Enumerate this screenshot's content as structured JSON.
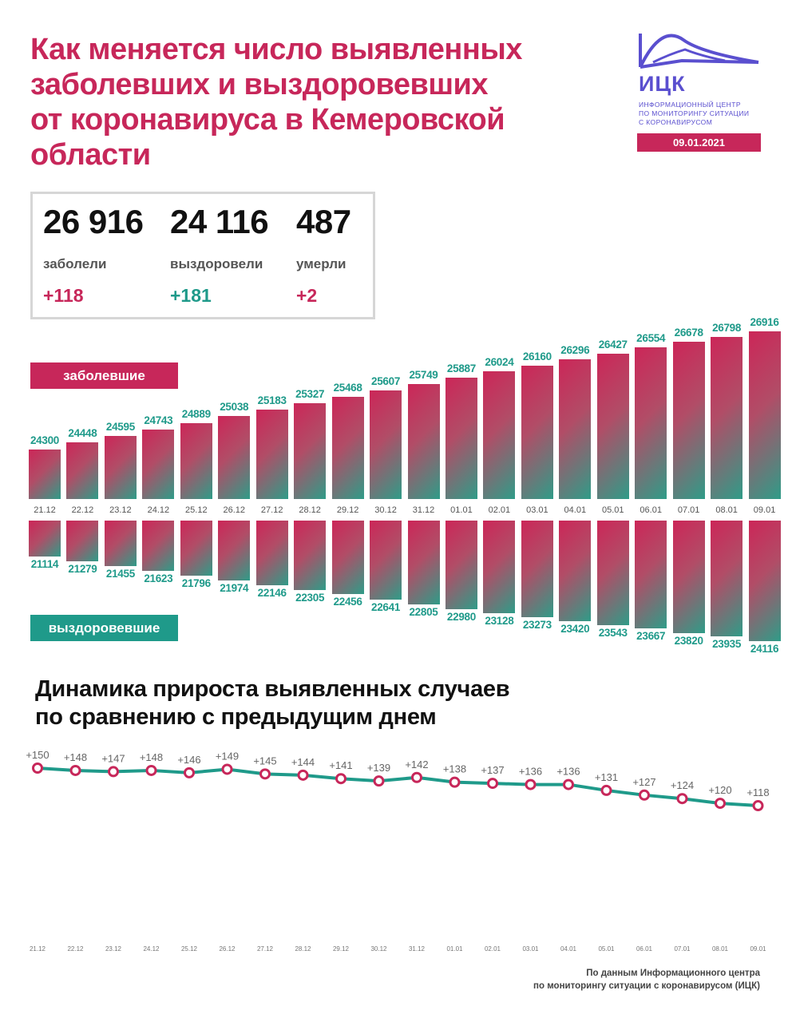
{
  "title": {
    "lines": [
      "Как меняется число выявленных",
      "заболевших и выздоровевших",
      "от коронавируса в Кемеровской",
      "области"
    ]
  },
  "logo": {
    "abbr": "ИЦК",
    "desc": [
      "ИНФОРМАЦИОННЫЙ ЦЕНТР",
      "ПО МОНИТОРИНГУ СИТУАЦИИ",
      "С КОРОНАВИРУСОМ"
    ],
    "date": "09.01.2021",
    "accent": "#5a4fcf"
  },
  "stats": [
    {
      "value": "26 916",
      "label": "заболели",
      "delta": "+118"
    },
    {
      "value": "24 116",
      "label": "выздоровели",
      "delta": "+181"
    },
    {
      "value": "487",
      "label": "умерли",
      "delta": "+2"
    }
  ],
  "tags": {
    "infected": "заболевшие",
    "recovered": "выздоровевшие"
  },
  "colors": {
    "pink": "#c7275a",
    "teal": "#1f9a8a"
  },
  "subtitle": {
    "lines": [
      "Динамика прироста выявленных случаев",
      "по сравнению с предыдущим днем"
    ]
  },
  "source": {
    "lines": [
      "По данным Информационного центра",
      "по мониторингу ситуации с коронавирусом (ИЦК)"
    ]
  },
  "chart_data": [
    {
      "type": "bar",
      "categories": [
        "21.12",
        "22.12",
        "23.12",
        "24.12",
        "25.12",
        "26.12",
        "27.12",
        "28.12",
        "29.12",
        "30.12",
        "31.12",
        "01.01",
        "02.01",
        "03.01",
        "04.01",
        "05.01",
        "06.01",
        "07.01",
        "08.01",
        "09.01"
      ],
      "series": [
        {
          "name": "заболевшие",
          "values": [
            24300,
            24448,
            24595,
            24743,
            24889,
            25038,
            25183,
            25327,
            25468,
            25607,
            25749,
            25887,
            26024,
            26160,
            26296,
            26427,
            26554,
            26678,
            26798,
            26916
          ]
        },
        {
          "name": "выздоровевшие",
          "values": [
            21114,
            21279,
            21455,
            21623,
            21796,
            21974,
            22146,
            22305,
            22456,
            22641,
            22805,
            22980,
            23128,
            23273,
            23420,
            23543,
            23667,
            23820,
            23935,
            24116
          ]
        }
      ]
    },
    {
      "type": "line",
      "categories": [
        "21.12",
        "22.12",
        "23.12",
        "24.12",
        "25.12",
        "26.12",
        "27.12",
        "28.12",
        "29.12",
        "30.12",
        "31.12",
        "01.01",
        "02.01",
        "03.01",
        "04.01",
        "05.01",
        "06.01",
        "07.01",
        "08.01",
        "09.01"
      ],
      "series": [
        {
          "values": [
            150,
            148,
            147,
            148,
            146,
            149,
            145,
            144,
            141,
            139,
            142,
            138,
            137,
            136,
            136,
            131,
            127,
            124,
            120,
            118
          ],
          "labels": [
            "+150",
            "+148",
            "+147",
            "+148",
            "+146",
            "+149",
            "+145",
            "+144",
            "+141",
            "+139",
            "+142",
            "+138",
            "+137",
            "+136",
            "+136",
            "+131",
            "+127",
            "+124",
            "+120",
            "+118"
          ]
        }
      ]
    }
  ]
}
